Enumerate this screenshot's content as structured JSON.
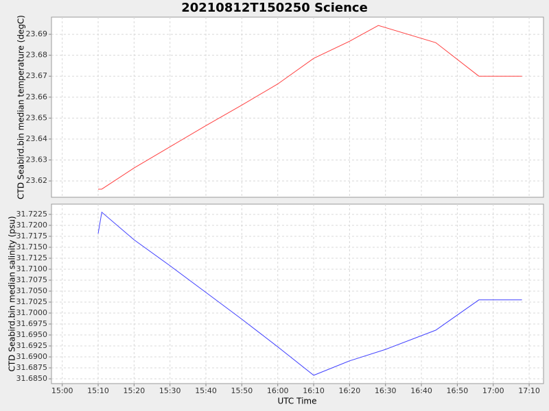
{
  "chart_data": [
    {
      "type": "line",
      "title": "20210812T150250 Science",
      "ylabel": "CTD Seabird.bin median temperature (degC)",
      "x": [
        "15:10",
        "15:11",
        "15:20",
        "15:30",
        "15:40",
        "15:50",
        "16:00",
        "16:10",
        "16:20",
        "16:28",
        "16:44",
        "16:56",
        "17:08"
      ],
      "series": [
        {
          "name": "temperature",
          "color": "#ff4040",
          "values": [
            23.6161,
            23.6161,
            23.6262,
            23.6363,
            23.6464,
            23.6562,
            23.6663,
            23.6785,
            23.6867,
            23.6942,
            23.686,
            23.67,
            23.67
          ]
        }
      ],
      "ylim": [
        23.6122,
        23.6982
      ],
      "yticks": [
        23.62,
        23.63,
        23.64,
        23.65,
        23.66,
        23.67,
        23.68,
        23.69
      ],
      "grid": true
    },
    {
      "type": "line",
      "ylabel": "CTD Seabird.bin median salinity (psu)",
      "xlabel": "UTC Time",
      "x": [
        "15:10",
        "15:11",
        "15:20",
        "15:30",
        "15:40",
        "15:50",
        "16:00",
        "16:10",
        "16:20",
        "16:30",
        "16:44",
        "16:56",
        "17:08"
      ],
      "series": [
        {
          "name": "salinity",
          "color": "#4040ff",
          "values": [
            31.7181,
            31.723,
            31.7167,
            31.7108,
            31.7047,
            31.6986,
            31.6923,
            31.6858,
            31.6891,
            31.6917,
            31.6961,
            31.703,
            31.703
          ]
        }
      ],
      "ylim": [
        31.68391,
        31.72484
      ],
      "yticks": [
        {
          "value": 31.685,
          "label": "31.6850"
        },
        31.6875,
        {
          "value": 31.69,
          "label": "31.6900"
        },
        31.6925,
        {
          "value": 31.695,
          "label": "31.6950"
        },
        31.6975,
        {
          "value": 31.7,
          "label": "31.7000"
        },
        31.7025,
        {
          "value": 31.705,
          "label": "31.7050"
        },
        31.7075,
        {
          "value": 31.71,
          "label": "31.7100"
        },
        31.7125,
        {
          "value": 31.715,
          "label": "31.7150"
        },
        31.7175,
        {
          "value": 31.72,
          "label": "31.7200"
        },
        31.7225
      ],
      "xlim": [
        "14:57",
        "17:14"
      ],
      "xticks": [
        "15:00",
        "15:10",
        "15:20",
        "15:30",
        "15:40",
        "15:50",
        "16:00",
        "16:10",
        "16:20",
        "16:30",
        "16:40",
        "16:50",
        "17:00",
        "17:10"
      ],
      "grid": true
    }
  ]
}
